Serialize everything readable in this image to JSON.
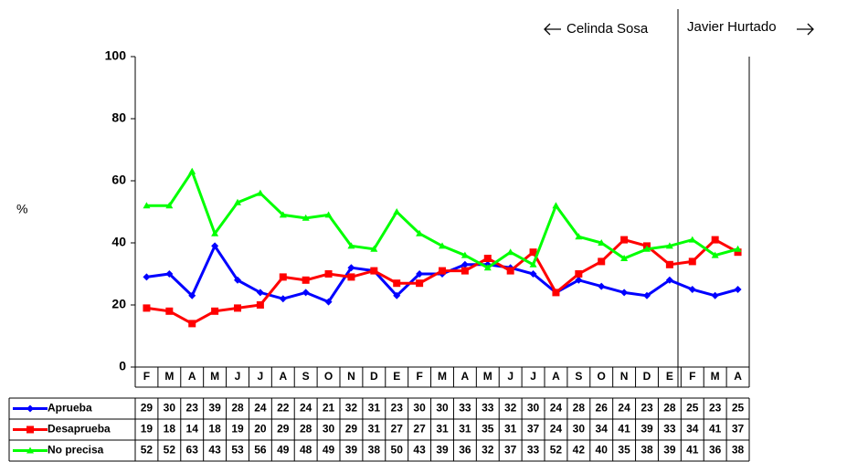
{
  "chart_data": {
    "type": "line",
    "y_label": "%",
    "categories": [
      "F",
      "M",
      "A",
      "M",
      "J",
      "J",
      "A",
      "S",
      "O",
      "N",
      "D",
      "E",
      "F",
      "M",
      "A",
      "M",
      "J",
      "J",
      "A",
      "S",
      "O",
      "N",
      "D",
      "E",
      "F",
      "M",
      "A"
    ],
    "series": [
      {
        "name": "Aprueba",
        "color": "#0000ff",
        "marker": "diamond",
        "values": [
          29,
          30,
          23,
          39,
          28,
          24,
          22,
          24,
          21,
          32,
          31,
          23,
          30,
          30,
          33,
          33,
          32,
          30,
          24,
          28,
          26,
          24,
          23,
          28,
          25,
          23,
          25
        ]
      },
      {
        "name": "Desaprueba",
        "color": "#ff0000",
        "marker": "square",
        "values": [
          19,
          18,
          14,
          18,
          19,
          20,
          29,
          28,
          30,
          29,
          31,
          27,
          27,
          31,
          31,
          35,
          31,
          37,
          24,
          30,
          34,
          41,
          39,
          33,
          34,
          41,
          37
        ]
      },
      {
        "name": "No precisa",
        "color": "#00ff00",
        "marker": "triangle",
        "values": [
          52,
          52,
          63,
          43,
          53,
          56,
          49,
          48,
          49,
          39,
          38,
          50,
          43,
          39,
          36,
          32,
          37,
          33,
          52,
          42,
          40,
          35,
          38,
          39,
          41,
          36,
          38
        ]
      }
    ],
    "ylim": [
      0,
      100
    ],
    "yticks": [
      0,
      20,
      40,
      60,
      80,
      100
    ],
    "grid": false,
    "annotations": [
      "Celinda Sosa",
      "Javier Hurtado"
    ]
  }
}
